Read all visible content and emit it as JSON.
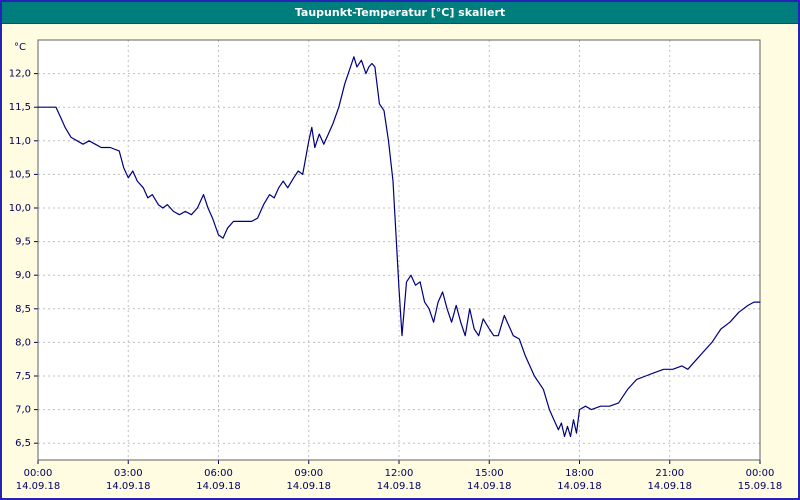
{
  "window": {
    "title": "Taupunkt-Temperatur [°C] skaliert"
  },
  "chart_data": {
    "type": "line",
    "title": "Taupunkt-Temperatur [°C] skaliert",
    "ylabel_unit": "°C",
    "xlabel": "",
    "ylim": [
      6.25,
      12.5
    ],
    "xlim_hours": [
      0,
      24
    ],
    "grid": true,
    "line_color": "#000080",
    "grid_color": "#c0c0c0",
    "frame_color": "#606060",
    "tick_text_color": "#000060",
    "plot_bg": "#ffffff",
    "yticks": [
      {
        "v": 6.5,
        "label": "6,5"
      },
      {
        "v": 7.0,
        "label": "7,0"
      },
      {
        "v": 7.5,
        "label": "7,5"
      },
      {
        "v": 8.0,
        "label": "8,0"
      },
      {
        "v": 8.5,
        "label": "8,5"
      },
      {
        "v": 9.0,
        "label": "9,0"
      },
      {
        "v": 9.5,
        "label": "9,5"
      },
      {
        "v": 10.0,
        "label": "10,0"
      },
      {
        "v": 10.5,
        "label": "10,5"
      },
      {
        "v": 11.0,
        "label": "11,0"
      },
      {
        "v": 11.5,
        "label": "11,5"
      },
      {
        "v": 12.0,
        "label": "12,0"
      }
    ],
    "xticks": [
      {
        "h": 0,
        "time": "00:00",
        "date": "14.09.18"
      },
      {
        "h": 3,
        "time": "03:00",
        "date": "14.09.18"
      },
      {
        "h": 6,
        "time": "06:00",
        "date": "14.09.18"
      },
      {
        "h": 9,
        "time": "09:00",
        "date": "14.09.18"
      },
      {
        "h": 12,
        "time": "12:00",
        "date": "14.09.18"
      },
      {
        "h": 15,
        "time": "15:00",
        "date": "14.09.18"
      },
      {
        "h": 18,
        "time": "18:00",
        "date": "14.09.18"
      },
      {
        "h": 21,
        "time": "21:00",
        "date": "14.09.18"
      },
      {
        "h": 24,
        "time": "00:00",
        "date": "15.09.18"
      }
    ],
    "points": [
      [
        0.0,
        11.5
      ],
      [
        0.3,
        11.5
      ],
      [
        0.6,
        11.5
      ],
      [
        0.75,
        11.35
      ],
      [
        0.9,
        11.2
      ],
      [
        1.1,
        11.05
      ],
      [
        1.3,
        11.0
      ],
      [
        1.5,
        10.95
      ],
      [
        1.7,
        11.0
      ],
      [
        1.9,
        10.95
      ],
      [
        2.1,
        10.9
      ],
      [
        2.4,
        10.9
      ],
      [
        2.7,
        10.85
      ],
      [
        2.85,
        10.6
      ],
      [
        3.0,
        10.45
      ],
      [
        3.15,
        10.55
      ],
      [
        3.3,
        10.4
      ],
      [
        3.5,
        10.3
      ],
      [
        3.65,
        10.15
      ],
      [
        3.8,
        10.2
      ],
      [
        4.0,
        10.05
      ],
      [
        4.15,
        10.0
      ],
      [
        4.3,
        10.05
      ],
      [
        4.5,
        9.95
      ],
      [
        4.7,
        9.9
      ],
      [
        4.9,
        9.95
      ],
      [
        5.1,
        9.9
      ],
      [
        5.3,
        10.0
      ],
      [
        5.5,
        10.2
      ],
      [
        5.65,
        10.0
      ],
      [
        5.8,
        9.85
      ],
      [
        6.0,
        9.6
      ],
      [
        6.15,
        9.55
      ],
      [
        6.3,
        9.7
      ],
      [
        6.5,
        9.8
      ],
      [
        6.8,
        9.8
      ],
      [
        7.1,
        9.8
      ],
      [
        7.3,
        9.85
      ],
      [
        7.5,
        10.05
      ],
      [
        7.7,
        10.2
      ],
      [
        7.85,
        10.15
      ],
      [
        8.0,
        10.3
      ],
      [
        8.15,
        10.4
      ],
      [
        8.3,
        10.3
      ],
      [
        8.5,
        10.45
      ],
      [
        8.65,
        10.55
      ],
      [
        8.8,
        10.5
      ],
      [
        9.0,
        11.0
      ],
      [
        9.1,
        11.2
      ],
      [
        9.2,
        10.9
      ],
      [
        9.35,
        11.1
      ],
      [
        9.5,
        10.95
      ],
      [
        9.65,
        11.1
      ],
      [
        9.8,
        11.25
      ],
      [
        10.0,
        11.5
      ],
      [
        10.2,
        11.85
      ],
      [
        10.35,
        12.05
      ],
      [
        10.5,
        12.25
      ],
      [
        10.6,
        12.1
      ],
      [
        10.75,
        12.2
      ],
      [
        10.9,
        12.0
      ],
      [
        11.0,
        12.1
      ],
      [
        11.1,
        12.15
      ],
      [
        11.2,
        12.1
      ],
      [
        11.35,
        11.55
      ],
      [
        11.5,
        11.45
      ],
      [
        11.65,
        11.0
      ],
      [
        11.8,
        10.4
      ],
      [
        11.9,
        9.6
      ],
      [
        12.0,
        8.8
      ],
      [
        12.1,
        8.1
      ],
      [
        12.25,
        8.9
      ],
      [
        12.4,
        9.0
      ],
      [
        12.55,
        8.85
      ],
      [
        12.7,
        8.9
      ],
      [
        12.85,
        8.6
      ],
      [
        13.0,
        8.5
      ],
      [
        13.15,
        8.3
      ],
      [
        13.3,
        8.6
      ],
      [
        13.45,
        8.75
      ],
      [
        13.6,
        8.5
      ],
      [
        13.75,
        8.3
      ],
      [
        13.9,
        8.55
      ],
      [
        14.05,
        8.3
      ],
      [
        14.2,
        8.1
      ],
      [
        14.35,
        8.5
      ],
      [
        14.5,
        8.2
      ],
      [
        14.65,
        8.1
      ],
      [
        14.8,
        8.35
      ],
      [
        15.0,
        8.2
      ],
      [
        15.15,
        8.1
      ],
      [
        15.3,
        8.1
      ],
      [
        15.5,
        8.4
      ],
      [
        15.65,
        8.25
      ],
      [
        15.8,
        8.1
      ],
      [
        16.0,
        8.05
      ],
      [
        16.2,
        7.8
      ],
      [
        16.5,
        7.5
      ],
      [
        16.8,
        7.3
      ],
      [
        17.0,
        7.0
      ],
      [
        17.15,
        6.85
      ],
      [
        17.3,
        6.7
      ],
      [
        17.4,
        6.8
      ],
      [
        17.5,
        6.6
      ],
      [
        17.6,
        6.75
      ],
      [
        17.7,
        6.6
      ],
      [
        17.8,
        6.85
      ],
      [
        17.9,
        6.65
      ],
      [
        18.0,
        7.0
      ],
      [
        18.2,
        7.05
      ],
      [
        18.4,
        7.0
      ],
      [
        18.7,
        7.05
      ],
      [
        19.0,
        7.05
      ],
      [
        19.3,
        7.1
      ],
      [
        19.6,
        7.3
      ],
      [
        19.9,
        7.45
      ],
      [
        20.2,
        7.5
      ],
      [
        20.5,
        7.55
      ],
      [
        20.8,
        7.6
      ],
      [
        21.1,
        7.6
      ],
      [
        21.4,
        7.65
      ],
      [
        21.6,
        7.6
      ],
      [
        21.9,
        7.75
      ],
      [
        22.1,
        7.85
      ],
      [
        22.4,
        8.0
      ],
      [
        22.7,
        8.2
      ],
      [
        23.0,
        8.3
      ],
      [
        23.3,
        8.45
      ],
      [
        23.6,
        8.55
      ],
      [
        23.8,
        8.6
      ],
      [
        24.0,
        8.6
      ]
    ]
  },
  "colors": {
    "titlebar_bg": "#007d7d",
    "titlebar_text": "#ffffff",
    "window_bg": "#fffce1",
    "window_border": "#2424b4"
  }
}
